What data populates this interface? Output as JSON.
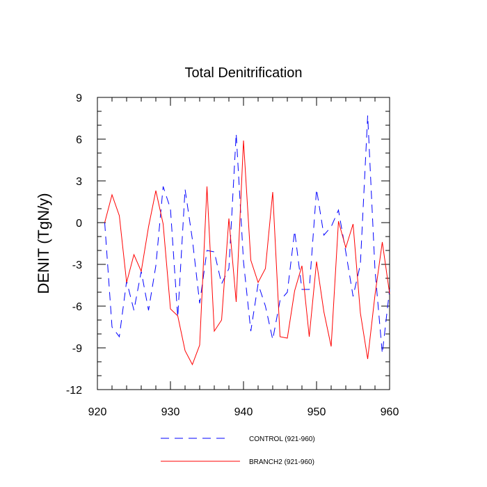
{
  "chart_data": {
    "type": "line",
    "title": "Total Denitrification",
    "xlabel": "",
    "ylabel": "DENIT  (TgN/y)",
    "xlim": [
      920,
      960
    ],
    "ylim": [
      -12,
      9
    ],
    "xticks": [
      "920",
      "930",
      "940",
      "950",
      "960"
    ],
    "yticks": [
      "9",
      "6",
      "3",
      "0",
      "-3",
      "-6",
      "-9",
      "-12"
    ],
    "x": [
      921,
      922,
      923,
      924,
      925,
      926,
      927,
      928,
      929,
      930,
      931,
      932,
      933,
      934,
      935,
      936,
      937,
      938,
      939,
      940,
      941,
      942,
      943,
      944,
      945,
      946,
      947,
      948,
      949,
      950,
      951,
      952,
      953,
      954,
      955,
      956,
      957,
      958,
      959,
      960
    ],
    "series": [
      {
        "name": "CONTROL (921-960)",
        "color": "#0000ff",
        "style": "dashed",
        "values": [
          0.0,
          -7.5,
          -8.2,
          -4.2,
          -6.3,
          -3.5,
          -6.3,
          -3.1,
          2.6,
          1.0,
          -6.8,
          2.4,
          -1.2,
          -5.8,
          -2.0,
          -2.1,
          -4.4,
          -3.3,
          6.4,
          -2.8,
          -7.8,
          -4.4,
          -6.0,
          -8.4,
          -5.6,
          -5.0,
          -0.6,
          -4.8,
          -4.8,
          2.4,
          -0.9,
          -0.3,
          0.9,
          -2.1,
          -5.3,
          -3.0,
          7.7,
          -3.4,
          -9.4,
          -4.8
        ]
      },
      {
        "name": "BRANCH2 (921-960)",
        "color": "#ff0000",
        "style": "solid",
        "values": [
          0.0,
          2.0,
          0.5,
          -4.3,
          -2.3,
          -3.5,
          -0.3,
          2.3,
          -0.1,
          -6.2,
          -6.7,
          -9.2,
          -10.2,
          -8.8,
          2.6,
          -7.8,
          -7.0,
          0.3,
          -5.7,
          5.9,
          -2.7,
          -4.3,
          -3.3,
          2.2,
          -8.2,
          -8.3,
          -4.9,
          -3.1,
          -8.2,
          -2.8,
          -6.4,
          -8.9,
          0.1,
          -1.8,
          -0.1,
          -6.5,
          -9.8,
          -5.2,
          -1.4,
          -5.1
        ]
      }
    ]
  }
}
